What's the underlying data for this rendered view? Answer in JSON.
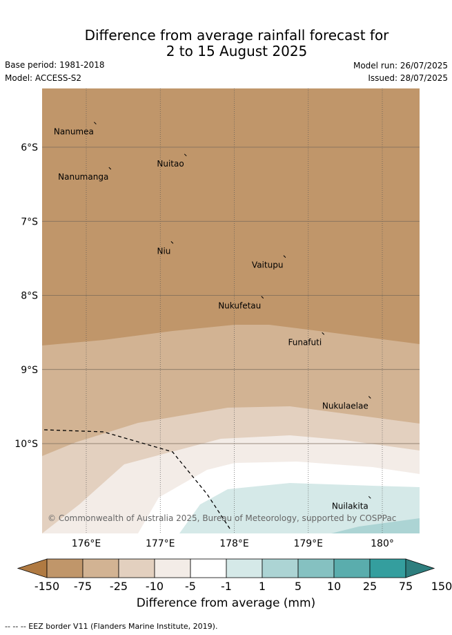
{
  "title": {
    "line1": "Difference from average rainfall forecast for",
    "line2": "2 to 15 August 2025"
  },
  "meta": {
    "base_period": "Base period: 1981-2018",
    "model": "Model: ACCESS-S2",
    "model_run": "Model run: 26/07/2025",
    "issued": "Issued: 28/07/2025"
  },
  "map": {
    "x_ticks": [
      {
        "label": "176°E",
        "value": 176
      },
      {
        "label": "177°E",
        "value": 177
      },
      {
        "label": "178°E",
        "value": 178
      },
      {
        "label": "179°E",
        "value": 179
      },
      {
        "label": "180°",
        "value": 180
      }
    ],
    "y_ticks": [
      {
        "label": "6°S",
        "value": -6
      },
      {
        "label": "7°S",
        "value": -7
      },
      {
        "label": "8°S",
        "value": -8
      },
      {
        "label": "9°S",
        "value": -9
      },
      {
        "label": "10°S",
        "value": -10
      }
    ],
    "lon_range": [
      175.4,
      180.5
    ],
    "lat_range": [
      -11.2,
      -5.2
    ],
    "islands": [
      {
        "name": "Nanumea",
        "lon": 176.12,
        "lat": -5.68
      },
      {
        "name": "Nuitao",
        "lon": 177.34,
        "lat": -6.11
      },
      {
        "name": "Nanumanga",
        "lon": 176.32,
        "lat": -6.29
      },
      {
        "name": "Niu",
        "lon": 177.16,
        "lat": -7.29
      },
      {
        "name": "Vaitupu",
        "lon": 178.68,
        "lat": -7.48
      },
      {
        "name": "Nukufetau",
        "lon": 178.38,
        "lat": -8.03
      },
      {
        "name": "Funafuti",
        "lon": 179.2,
        "lat": -8.52
      },
      {
        "name": "Nukulaelae",
        "lon": 179.83,
        "lat": -9.38
      },
      {
        "name": "Nuilakita",
        "lon": 179.83,
        "lat": -10.73
      }
    ],
    "copyright": "© Commonwealth of Australia 2025, Bureau of Meteorology, supported by COSPPac"
  },
  "colorbar": {
    "labels": [
      "-150",
      "-75",
      "-25",
      "-10",
      "-5",
      "-1",
      "1",
      "5",
      "10",
      "25",
      "75",
      "150"
    ],
    "colors": [
      "#b07a42",
      "#c0966a",
      "#d2b393",
      "#e3d0bf",
      "#f3ece7",
      "#ffffff",
      "#d5e9e8",
      "#acd4d4",
      "#85c1c1",
      "#5aadad",
      "#349e9e",
      "#2e7e7e"
    ],
    "title": "Difference from average (mm)"
  },
  "legend": {
    "text": "--  --  -- EEZ border V11 (Flanders Marine Institute, 2019)."
  }
}
